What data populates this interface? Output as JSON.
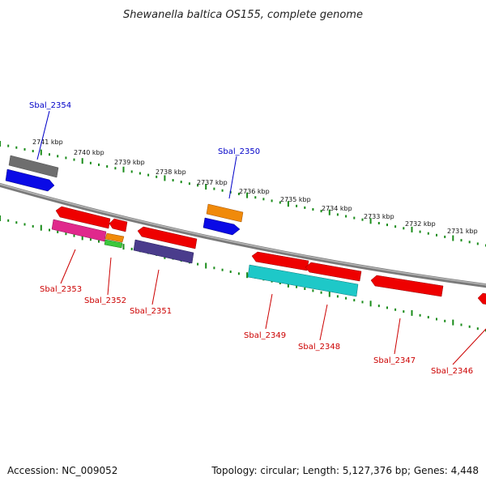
{
  "title": "Shewanella baltica OS155, complete genome",
  "ruler_ticks": [
    "2741 kbp",
    "2740 kbp",
    "2739 kbp",
    "2738 kbp",
    "2737 kbp",
    "2736 kbp",
    "2735 kbp",
    "2734 kbp",
    "2733 kbp",
    "2732 kbp",
    "2731 kbp"
  ],
  "genes": [
    {
      "label": "Sbal_2354",
      "color": "#0000c8"
    },
    {
      "label": "Sbal_2350",
      "color": "#0000c8"
    },
    {
      "label": "Sbal_2353",
      "color": "#cc0000"
    },
    {
      "label": "Sbal_2352",
      "color": "#cc0000"
    },
    {
      "label": "Sbal_2351",
      "color": "#cc0000"
    },
    {
      "label": "Sbal_2349",
      "color": "#cc0000"
    },
    {
      "label": "Sbal_2348",
      "color": "#cc0000"
    },
    {
      "label": "Sbal_2347",
      "color": "#cc0000"
    },
    {
      "label": "Sbal_2346",
      "color": "#cc0000"
    }
  ],
  "colors": {
    "backbone": "#808080",
    "tick": "#1a8c1a",
    "gene_red": "#ee0000",
    "gene_blue": "#0a0ae6",
    "gene_gray": "#6e6e6e",
    "gene_orange": "#f08a0a",
    "gene_magenta": "#e0288c",
    "gene_green": "#3cc83c",
    "gene_purple": "#4a3c8c",
    "gene_cyan": "#1ec8c8"
  },
  "footer": {
    "accession": "Accession: NC_009052",
    "stats": "Topology: circular; Length: 5,127,376 bp; Genes: 4,448"
  }
}
